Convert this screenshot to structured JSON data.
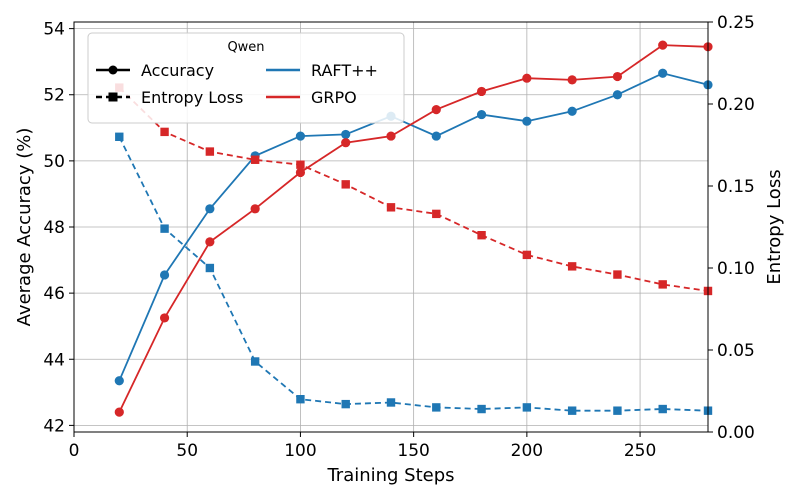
{
  "chart_data": {
    "type": "line",
    "title": "",
    "xlabel": "Training Steps",
    "ylabel_left": "Average Accuracy (%)",
    "ylabel_right": "Entropy Loss",
    "xlim": [
      0,
      280
    ],
    "ylim_left": [
      41.8,
      54.2
    ],
    "ylim_right": [
      0.0,
      0.25
    ],
    "xticks": [
      "0",
      "50",
      "100",
      "150",
      "200",
      "250"
    ],
    "yticks_left": [
      "42",
      "44",
      "46",
      "48",
      "50",
      "52",
      "54"
    ],
    "yticks_right": [
      "0.00",
      "0.05",
      "0.10",
      "0.15",
      "0.20",
      "0.25"
    ],
    "grid": true,
    "legend": {
      "title": "Qwen",
      "placement": "top-left",
      "style_entries": [
        "Accuracy",
        "Entropy Loss"
      ],
      "color_entries": [
        "RAFT++",
        "GRPO"
      ]
    },
    "x": [
      20,
      40,
      60,
      80,
      100,
      120,
      140,
      160,
      180,
      200,
      220,
      240,
      260,
      280
    ],
    "series": [
      {
        "name": "RAFT++",
        "metric": "Accuracy",
        "axis": "left",
        "color": "#1f77b4",
        "marker": "circle",
        "linestyle": "solid",
        "values": [
          43.35,
          46.55,
          48.55,
          50.15,
          50.75,
          50.8,
          51.35,
          50.75,
          51.4,
          51.2,
          51.5,
          52.0,
          52.65,
          52.3
        ]
      },
      {
        "name": "GRPO",
        "metric": "Accuracy",
        "axis": "left",
        "color": "#d62728",
        "marker": "circle",
        "linestyle": "solid",
        "values": [
          42.4,
          45.25,
          47.55,
          48.55,
          49.65,
          50.55,
          50.75,
          51.55,
          52.1,
          52.5,
          52.45,
          52.55,
          53.5,
          53.45
        ]
      },
      {
        "name": "RAFT++",
        "metric": "Entropy Loss",
        "axis": "right",
        "color": "#1f77b4",
        "marker": "square",
        "linestyle": "dashed",
        "values": [
          0.18,
          0.124,
          0.1,
          0.043,
          0.02,
          0.017,
          0.018,
          0.015,
          0.014,
          0.015,
          0.013,
          0.013,
          0.014,
          0.013
        ]
      },
      {
        "name": "GRPO",
        "metric": "Entropy Loss",
        "axis": "right",
        "color": "#d62728",
        "marker": "square",
        "linestyle": "dashed",
        "values": [
          0.21,
          0.183,
          0.171,
          0.166,
          0.163,
          0.151,
          0.137,
          0.133,
          0.12,
          0.108,
          0.101,
          0.096,
          0.09,
          0.086
        ]
      }
    ]
  }
}
